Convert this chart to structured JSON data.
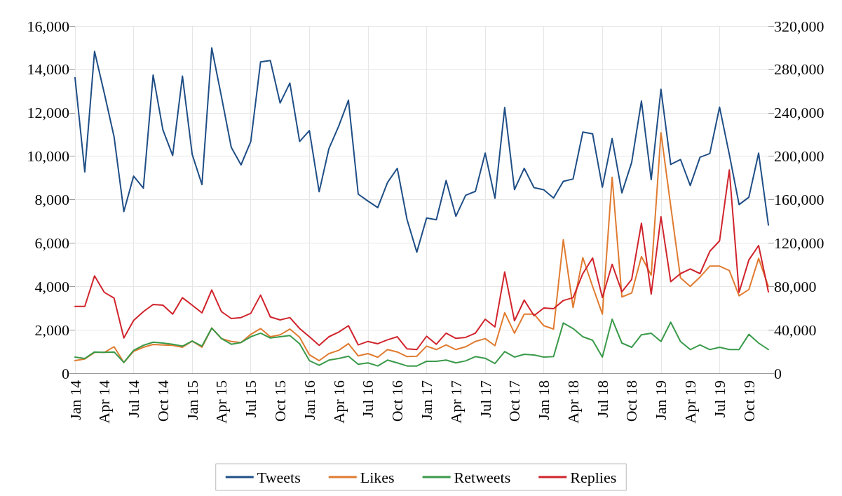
{
  "chart_data": {
    "type": "line",
    "categories": [
      "Jan 14",
      null,
      null,
      "Apr 14",
      null,
      null,
      "Jul 14",
      null,
      null,
      "Oct 14",
      null,
      null,
      "Jan 15",
      null,
      null,
      "Apr 15",
      null,
      null,
      "Jul 15",
      null,
      null,
      "Oct 15",
      null,
      null,
      "Jan 16",
      null,
      null,
      "Apr 16",
      null,
      null,
      "Jul 16",
      null,
      null,
      "Oct 16",
      null,
      null,
      "Jan 17",
      null,
      null,
      "Apr 17",
      null,
      null,
      "Jul 17",
      null,
      null,
      "Oct 17",
      null,
      null,
      "Jan 18",
      null,
      null,
      "Apr 18",
      null,
      null,
      "Jul 18",
      null,
      null,
      "Oct 18",
      null,
      null,
      "Jan 19",
      null,
      null,
      "Apr 19",
      null,
      null,
      "Jul 19",
      null,
      null,
      "Oct 19",
      null,
      null
    ],
    "series": [
      {
        "name": "Tweets",
        "color": "#1f4e86",
        "values": [
          13620,
          9280,
          14830,
          12900,
          10890,
          7450,
          9080,
          8530,
          13740,
          11210,
          10030,
          13690,
          10080,
          8690,
          14990,
          12730,
          10410,
          9600,
          10680,
          14340,
          14410,
          12450,
          13370,
          10680,
          11180,
          8360,
          10350,
          11380,
          12580,
          8250,
          7930,
          7630,
          8790,
          9440,
          7080,
          5580,
          7150,
          7070,
          8880,
          7230,
          8200,
          8380,
          10140,
          8060,
          12240,
          8460,
          9440,
          8550,
          8450,
          8070,
          8840,
          8950,
          11110,
          11030,
          8570,
          10810,
          8310,
          9710,
          12540,
          8920,
          13080,
          9620,
          9850,
          8650,
          9950,
          10120,
          12260,
          10080,
          7770,
          8110,
          10140,
          6830
        ]
      },
      {
        "name": "Likes",
        "color": "#e07b30",
        "axis": "y2",
        "values": [
          11600,
          13100,
          19200,
          19200,
          24400,
          9900,
          20200,
          23900,
          26500,
          26100,
          25700,
          23900,
          29700,
          23900,
          41600,
          31900,
          29300,
          28300,
          35800,
          41200,
          33600,
          35400,
          40700,
          33200,
          17000,
          11600,
          18100,
          21100,
          27200,
          16000,
          18100,
          14700,
          21800,
          19600,
          15300,
          15700,
          25000,
          21800,
          26100,
          21800,
          24400,
          29300,
          31900,
          25400,
          55800,
          36900,
          54500,
          54500,
          43800,
          40700,
          123000,
          60600,
          106500,
          80000,
          54500,
          180600,
          70300,
          73900,
          107500,
          90300,
          221600,
          154000,
          87900,
          80000,
          88600,
          98700,
          98700,
          94600,
          71300,
          77100,
          105800,
          80000
        ]
      },
      {
        "name": "Retweets",
        "color": "#3a9a4a",
        "axis": "y2",
        "values": [
          14900,
          13600,
          19600,
          19200,
          19600,
          9900,
          21100,
          25700,
          28600,
          27800,
          26700,
          25000,
          29700,
          25000,
          41600,
          31900,
          26700,
          28300,
          33600,
          36900,
          32500,
          33600,
          34700,
          27200,
          11600,
          7300,
          12100,
          13600,
          15700,
          8200,
          9500,
          6700,
          12100,
          9500,
          6700,
          6700,
          11000,
          11000,
          12100,
          9500,
          11400,
          15300,
          13800,
          8900,
          20000,
          14900,
          17500,
          16800,
          14900,
          15300,
          46300,
          41200,
          33600,
          30400,
          14900,
          49800,
          27800,
          23900,
          35400,
          36900,
          29300,
          47000,
          29300,
          21800,
          26100,
          21800,
          23900,
          21800,
          21800,
          35800,
          27800,
          21800
        ]
      },
      {
        "name": "Replies",
        "color": "#d0242c",
        "axis": "y2",
        "values": [
          61600,
          61600,
          89700,
          74500,
          69200,
          32500,
          48700,
          56700,
          63400,
          62700,
          54500,
          69600,
          62700,
          55600,
          76700,
          56700,
          50400,
          51300,
          55200,
          72000,
          51900,
          49100,
          51300,
          41200,
          33600,
          25700,
          33600,
          37900,
          43800,
          26100,
          29300,
          27200,
          30800,
          33600,
          22400,
          21800,
          34100,
          26700,
          36900,
          32100,
          33000,
          36900,
          49800,
          42700,
          93300,
          48300,
          67400,
          53000,
          60100,
          59500,
          67000,
          69600,
          91800,
          106200,
          69800,
          100400,
          75000,
          86400,
          138200,
          72900,
          144200,
          84300,
          91800,
          96100,
          91800,
          112300,
          122000,
          187300,
          74500,
          104300,
          117700,
          75000
        ]
      }
    ],
    "ylim": [
      0,
      16000
    ],
    "yticks": [
      {
        "value": 0,
        "label": "0"
      },
      {
        "value": 2000,
        "label": "2,000"
      },
      {
        "value": 4000,
        "label": "4,000"
      },
      {
        "value": 6000,
        "label": "6,000"
      },
      {
        "value": 8000,
        "label": "8,000"
      },
      {
        "value": 10000,
        "label": "10,000"
      },
      {
        "value": 12000,
        "label": "12,000"
      },
      {
        "value": 14000,
        "label": "14,000"
      },
      {
        "value": 16000,
        "label": "16,000"
      }
    ],
    "y2lim": [
      0,
      320000
    ],
    "y2ticks": [
      {
        "value": 0,
        "label": "0"
      },
      {
        "value": 40000,
        "label": "40,000"
      },
      {
        "value": 80000,
        "label": "80,000"
      },
      {
        "value": 120000,
        "label": "120,000"
      },
      {
        "value": 160000,
        "label": "160,000"
      },
      {
        "value": 200000,
        "label": "200,000"
      },
      {
        "value": 240000,
        "label": "240,000"
      },
      {
        "value": 280000,
        "label": "280,000"
      },
      {
        "value": 320000,
        "label": "320,000"
      }
    ],
    "grid": true,
    "legend": "bottom",
    "marker": "none",
    "line_style": "solid"
  }
}
